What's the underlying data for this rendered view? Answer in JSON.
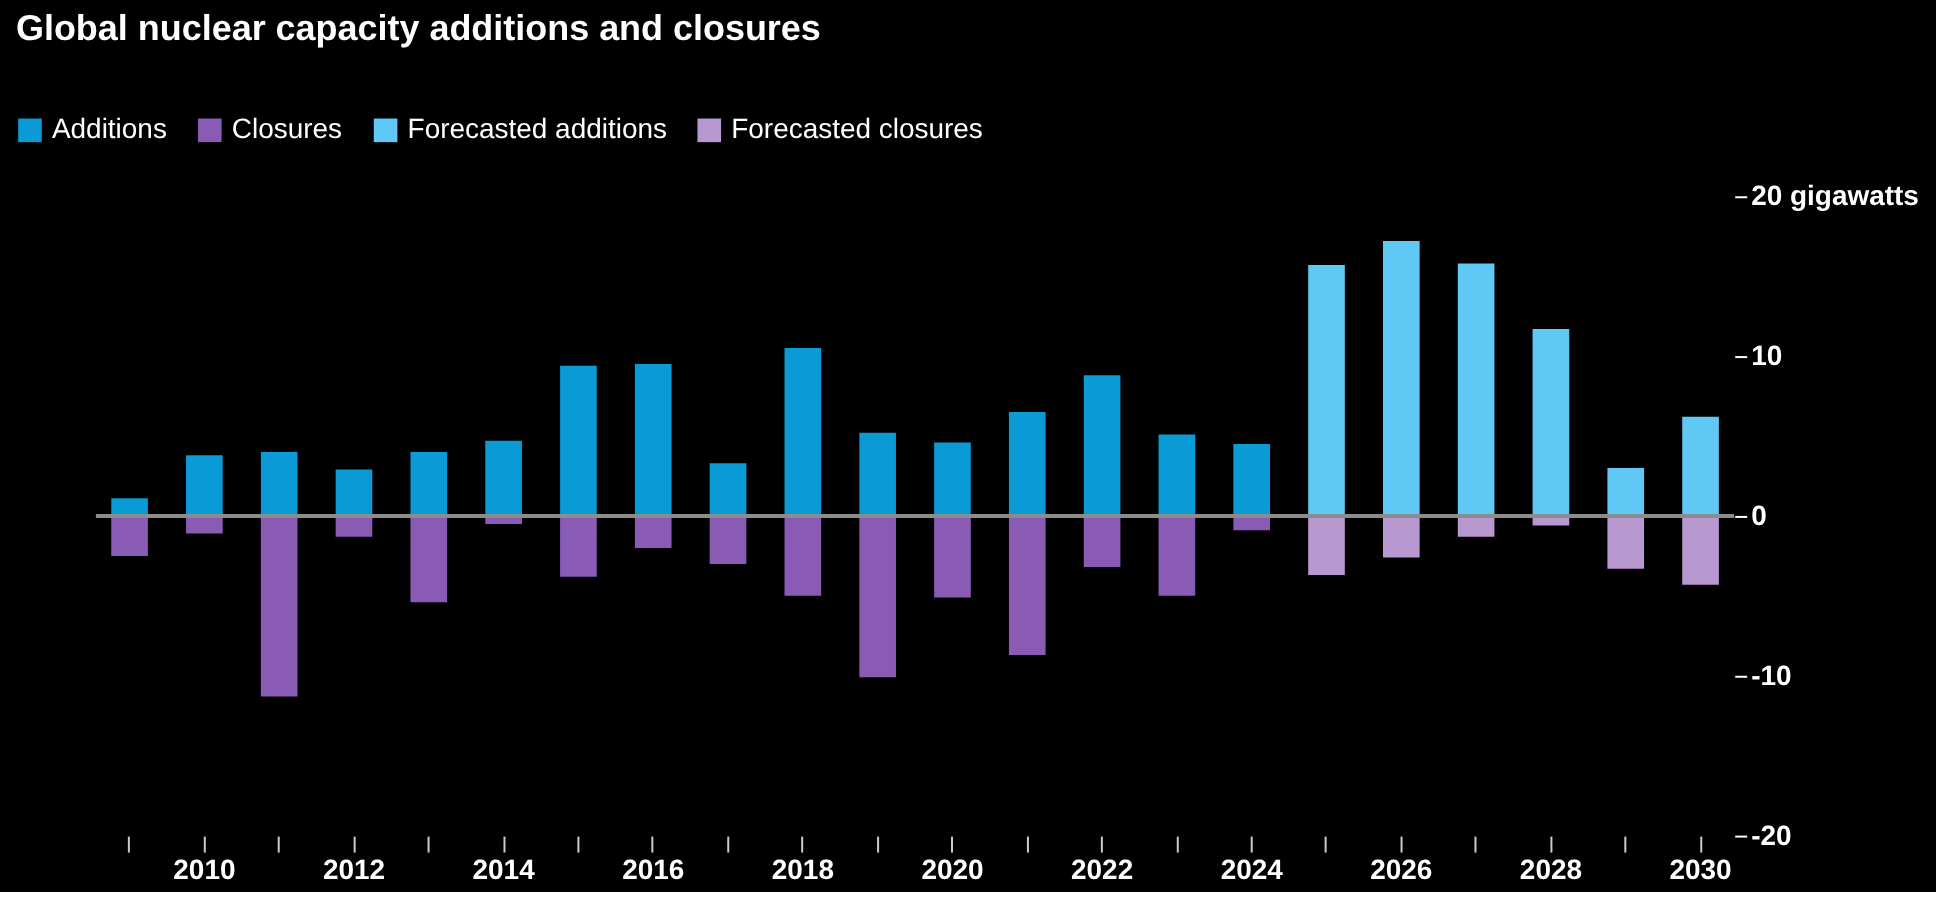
{
  "chart_data": {
    "type": "bar",
    "title": "Global nuclear capacity additions and closures",
    "categories": [
      null,
      "2010",
      null,
      "2012",
      null,
      "2014",
      null,
      "2016",
      null,
      "2018",
      null,
      "2020",
      null,
      "2022",
      null,
      "2024",
      null,
      "2026",
      null,
      "2028",
      null,
      "2030"
    ],
    "stacked": true,
    "series": [
      {
        "name": "Additions",
        "color": "#0a9ad6",
        "values": [
          1.1,
          3.8,
          4.0,
          2.9,
          4.0,
          4.7,
          9.4,
          9.5,
          3.3,
          10.5,
          5.2,
          4.6,
          6.5,
          8.8,
          5.1,
          4.5,
          null,
          null,
          null,
          null,
          null,
          null
        ]
      },
      {
        "name": "Closures",
        "color": "#8a5bb5",
        "values": [
          -2.5,
          -1.1,
          -11.3,
          -1.3,
          -5.4,
          -0.5,
          -3.8,
          -2.0,
          -3.0,
          -5.0,
          -10.1,
          -5.1,
          -8.7,
          -3.2,
          -5.0,
          -0.9,
          null,
          null,
          null,
          null,
          null,
          null
        ]
      },
      {
        "name": "Forecasted additions",
        "color": "#5fc8f5",
        "values": [
          null,
          null,
          null,
          null,
          null,
          null,
          null,
          null,
          null,
          null,
          null,
          null,
          null,
          null,
          null,
          null,
          15.7,
          17.2,
          15.8,
          11.7,
          3.0,
          6.2
        ]
      },
      {
        "name": "Forecasted closures",
        "color": "#b898d0",
        "values": [
          null,
          null,
          null,
          null,
          null,
          null,
          null,
          null,
          null,
          null,
          null,
          null,
          null,
          null,
          null,
          null,
          -3.7,
          -2.6,
          -1.3,
          -0.6,
          -3.3,
          -4.3
        ]
      }
    ],
    "ylim": [
      -20,
      20
    ],
    "yticks": [
      {
        "value": 20,
        "label": "20 gigawatts"
      },
      10,
      0,
      -10,
      -20
    ],
    "ref_lines": [
      {
        "axis": "y",
        "value": 0,
        "color": "#8c8c8c"
      }
    ],
    "grid": false,
    "legend": "top left"
  }
}
